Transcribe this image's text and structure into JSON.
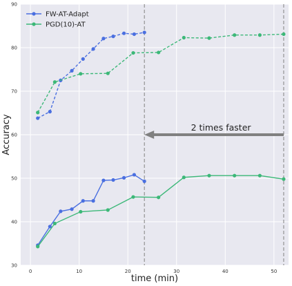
{
  "chart_data": {
    "type": "line",
    "title": "",
    "xlabel": "time (min)",
    "ylabel": "Accuracy",
    "xlim": [
      -2,
      53
    ],
    "ylim": [
      30,
      90
    ],
    "xticks": [
      0,
      10,
      20,
      30,
      40,
      50
    ],
    "yticks": [
      30,
      40,
      50,
      60,
      70,
      80,
      90
    ],
    "grid": true,
    "background": "#e8e8f0",
    "legend": {
      "placement": "top-left"
    },
    "series": [
      {
        "name": "FW-AT-Adapt",
        "color": "#4a6fe0",
        "clean": {
          "x": [
            1.5,
            4.0,
            6.2,
            8.5,
            10.8,
            12.9,
            15.0,
            17.0,
            19.2,
            21.3,
            23.4
          ],
          "y": [
            63.8,
            65.3,
            72.5,
            74.7,
            77.4,
            79.7,
            82.1,
            82.6,
            83.3,
            83.1,
            83.5
          ]
        },
        "robust": {
          "x": [
            1.5,
            4.0,
            6.2,
            8.5,
            10.8,
            12.9,
            15.0,
            17.0,
            19.2,
            21.3,
            23.4
          ],
          "y": [
            34.6,
            38.9,
            42.4,
            42.9,
            44.8,
            44.8,
            49.5,
            49.6,
            50.1,
            50.8,
            49.3
          ]
        }
      },
      {
        "name": "PGD(10)-AT",
        "color": "#3cb878",
        "clean": {
          "x": [
            1.5,
            5.0,
            10.3,
            15.9,
            21.1,
            26.3,
            31.5,
            36.7,
            41.9,
            47.1,
            52.0
          ],
          "y": [
            65.1,
            72.1,
            74.0,
            74.1,
            78.8,
            78.9,
            82.3,
            82.2,
            82.9,
            82.9,
            83.1
          ]
        },
        "robust": {
          "x": [
            1.5,
            5.0,
            10.3,
            15.9,
            21.1,
            26.3,
            31.5,
            36.7,
            41.9,
            47.1,
            52.0
          ],
          "y": [
            34.3,
            39.6,
            42.3,
            42.7,
            45.7,
            45.6,
            50.2,
            50.6,
            50.6,
            50.6,
            49.8
          ]
        }
      }
    ],
    "vlines": [
      23.4,
      52.0
    ],
    "annotation": {
      "text": "2 times faster",
      "arrow_from_x": 52.0,
      "arrow_to_x": 23.4,
      "arrow_y": 60,
      "color": "#808080"
    }
  }
}
